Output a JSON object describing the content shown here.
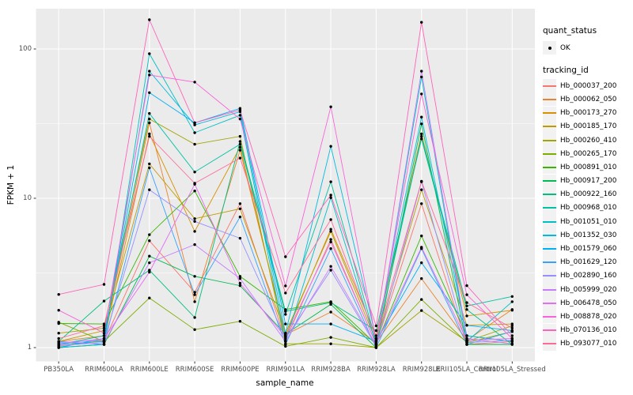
{
  "figure": {
    "background": "#FFFFFF",
    "panel_bg": "#EBEBEB",
    "grid_color": "#FFFFFF",
    "tick_color": "#333333",
    "tick_label_color": "#4D4D4D",
    "axis_title_color": "#000000",
    "point_color": "#000000",
    "legend_key_bg": "#F2F2F2"
  },
  "legend": {
    "quant_status_title": "quant_status",
    "quant_status_entries": [
      {
        "label": "OK",
        "shape": "point"
      }
    ],
    "tracking_id_title": "tracking_id"
  },
  "chart_data": {
    "type": "line",
    "title": "",
    "xlabel": "sample_name",
    "ylabel": "FPKM + 1",
    "y_scale": "log10",
    "y_ticks": [
      1,
      10,
      100
    ],
    "y_minor_gridlines": [
      3.162,
      31.623
    ],
    "ylim": [
      0.81,
      186
    ],
    "grid": true,
    "legend_position": "right",
    "marker": "black-point",
    "categories": [
      "PB350LA",
      "RRIM600LA",
      "RRIM600LE",
      "RRIM600SE",
      "RRIM600PE",
      "RRIM901LA",
      "RRIM928BA",
      "RRIM928LA",
      "RRIM928LE",
      "RRII105LA_Control",
      "RRII105LA_Stressed"
    ],
    "series": [
      {
        "name": "Hb_000037_200",
        "color": "#F8766D",
        "values": [
          1.05,
          1.1,
          5.2,
          2.35,
          9.2,
          1.12,
          5.3,
          1.05,
          9.2,
          1.05,
          1.1
        ]
      },
      {
        "name": "Hb_000062_050",
        "color": "#EA8331",
        "values": [
          1.1,
          1.2,
          32,
          2.03,
          21,
          1.22,
          1.73,
          1.08,
          2.9,
          1.12,
          1.8
        ]
      },
      {
        "name": "Hb_000173_270",
        "color": "#D89000",
        "values": [
          1.02,
          1.12,
          27,
          6.0,
          22,
          1.2,
          6.2,
          1.2,
          27,
          1.63,
          1.78
        ]
      },
      {
        "name": "Hb_000185_170",
        "color": "#C09B00",
        "values": [
          1.1,
          1.3,
          17,
          7.3,
          8.5,
          1.25,
          6.0,
          1.1,
          11.4,
          1.41,
          1.44
        ]
      },
      {
        "name": "Hb_000260_410",
        "color": "#A3A500",
        "values": [
          1.25,
          1.35,
          34,
          23,
          26,
          1.06,
          1.06,
          1.0,
          1.77,
          1.1,
          1.4
        ]
      },
      {
        "name": "Hb_000265_170",
        "color": "#7CAE00",
        "values": [
          1.48,
          1.1,
          2.15,
          1.32,
          1.5,
          1.02,
          1.17,
          1.0,
          2.1,
          1.08,
          1.28
        ]
      },
      {
        "name": "Hb_000891_010",
        "color": "#39B600",
        "values": [
          1.45,
          1.44,
          5.7,
          11.2,
          3.0,
          1.8,
          2.03,
          1.05,
          5.6,
          1.2,
          1.1
        ]
      },
      {
        "name": "Hb_000917_200",
        "color": "#00BB4E",
        "values": [
          1.0,
          1.05,
          4.1,
          3.0,
          2.6,
          1.23,
          1.95,
          1.0,
          31.5,
          1.05,
          1.05
        ]
      },
      {
        "name": "Hb_000922_160",
        "color": "#00BF7D",
        "values": [
          1.1,
          2.05,
          3.3,
          1.59,
          24,
          1.75,
          2.0,
          1.3,
          25,
          1.8,
          1.05
        ]
      },
      {
        "name": "Hb_000968_010",
        "color": "#00C1A3",
        "values": [
          1.05,
          1.2,
          37,
          15,
          23,
          1.67,
          12.9,
          1.1,
          26,
          1.9,
          2.2
        ]
      },
      {
        "name": "Hb_001051_010",
        "color": "#00BFC4",
        "values": [
          1.0,
          1.05,
          93,
          27.5,
          36,
          1.1,
          10.1,
          1.05,
          65,
          1.1,
          2.03
        ]
      },
      {
        "name": "Hb_001352_030",
        "color": "#00BAE0",
        "values": [
          1.05,
          1.1,
          71,
          31,
          38,
          1.25,
          22.3,
          1.15,
          35,
          1.2,
          1.1
        ]
      },
      {
        "name": "Hb_001579_060",
        "color": "#00B0F6",
        "values": [
          1.0,
          1.15,
          51,
          32,
          40,
          1.44,
          1.44,
          1.1,
          3.7,
          1.41,
          1.3
        ]
      },
      {
        "name": "Hb_001629_120",
        "color": "#35A2FF",
        "values": [
          1.1,
          1.05,
          16,
          2.26,
          7.5,
          1.05,
          4.6,
          1.0,
          4.6,
          1.05,
          1.28
        ]
      },
      {
        "name": "Hb_002890_160",
        "color": "#9590FF",
        "values": [
          1.08,
          1.12,
          11.4,
          7.0,
          5.4,
          1.15,
          3.3,
          1.02,
          12.9,
          1.08,
          1.12
        ]
      },
      {
        "name": "Hb_005999_020",
        "color": "#C77CFF",
        "values": [
          1.03,
          1.08,
          3.7,
          4.9,
          2.9,
          1.1,
          3.5,
          1.04,
          71,
          1.15,
          1.06
        ]
      },
      {
        "name": "Hb_006478_050",
        "color": "#E76BF3",
        "values": [
          1.06,
          1.15,
          3.2,
          12.4,
          2.7,
          1.18,
          5.1,
          1.06,
          4.7,
          1.12,
          1.15
        ]
      },
      {
        "name": "Hb_008878_020",
        "color": "#FA62DB",
        "values": [
          1.78,
          1.25,
          67,
          60,
          34,
          2.59,
          41,
          1.12,
          50,
          2.26,
          1.15
        ]
      },
      {
        "name": "Hb_070136_010",
        "color": "#FF62BC",
        "values": [
          2.27,
          2.65,
          157,
          32,
          39,
          4.06,
          10.5,
          1.4,
          151,
          2.6,
          1.2
        ]
      },
      {
        "name": "Hb_093077_010",
        "color": "#FF6A98",
        "values": [
          1.15,
          1.4,
          26,
          12.6,
          18.6,
          2.32,
          7.2,
          1.15,
          13,
          2.0,
          1.35
        ]
      }
    ]
  }
}
